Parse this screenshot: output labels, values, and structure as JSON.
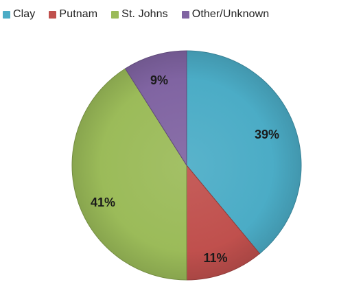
{
  "chart_data": {
    "type": "pie",
    "title": "",
    "categories": [
      "Clay",
      "Putnam",
      "St. Johns",
      "Other/Unknown"
    ],
    "values": [
      39,
      11,
      41,
      9
    ],
    "data_labels": [
      "39%",
      "11%",
      "41%",
      "9%"
    ],
    "colors": [
      "#4bacc6",
      "#c0504d",
      "#9bbb59",
      "#8064a2"
    ],
    "legend_position": "top"
  }
}
